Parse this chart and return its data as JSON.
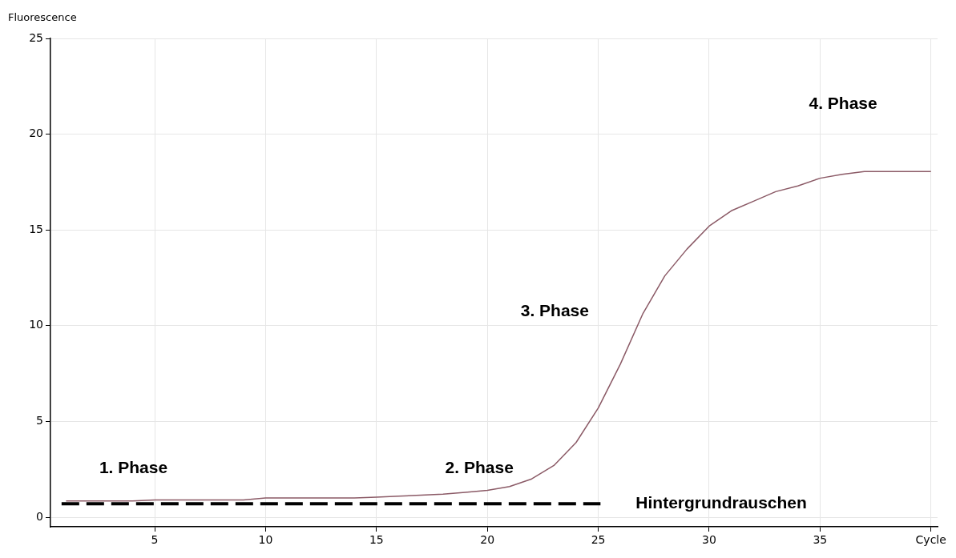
{
  "chart_data": {
    "type": "line",
    "ylabel": "Fluorescence",
    "xlim": [
      0.3,
      40.3
    ],
    "ylim": [
      -0.5,
      25
    ],
    "xticks": [
      5,
      10,
      15,
      20,
      25,
      30,
      35,
      {
        "value": 40,
        "label": "Cycle"
      }
    ],
    "yticks": [
      0,
      5,
      10,
      15,
      20,
      25
    ],
    "grid": true,
    "legend": false,
    "marker": "none",
    "series": [
      {
        "color": "#8b5a66",
        "line_style": "solid",
        "x": [
          1,
          2,
          3,
          4,
          5,
          6,
          7,
          8,
          9,
          10,
          11,
          12,
          13,
          14,
          15,
          16,
          17,
          18,
          19,
          20,
          21,
          22,
          23,
          24,
          25,
          26,
          27,
          28,
          29,
          30,
          31,
          32,
          33,
          34,
          35,
          36,
          37,
          38,
          39,
          40
        ],
        "values": [
          0.85,
          0.85,
          0.85,
          0.85,
          0.9,
          0.9,
          0.9,
          0.9,
          0.9,
          1.0,
          1.0,
          1.0,
          1.0,
          1.0,
          1.05,
          1.1,
          1.15,
          1.2,
          1.3,
          1.4,
          1.6,
          2.0,
          2.7,
          3.9,
          5.7,
          8.0,
          10.6,
          12.6,
          14.0,
          15.2,
          16.0,
          16.5,
          17.0,
          17.3,
          17.7,
          17.9,
          18.05,
          18.05,
          18.05,
          18.05
        ]
      },
      {
        "name": "Hintergrundrauschen",
        "color": "#000000",
        "line_style": "dashed",
        "x": [
          0.8,
          25.1
        ],
        "values": [
          0.7,
          0.7
        ]
      }
    ],
    "annotations": [
      "1. Phase",
      "2. Phase",
      "3. Phase",
      "4. Phase"
    ]
  }
}
